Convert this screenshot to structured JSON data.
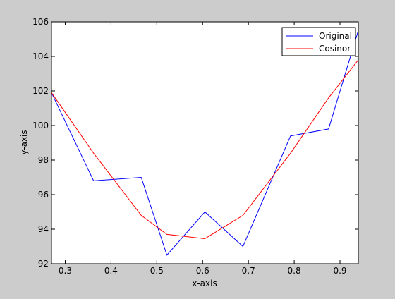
{
  "chart_data": {
    "type": "line",
    "title": "",
    "xlabel": "x-axis",
    "ylabel": "y-axis",
    "xlim": [
      0.27,
      0.94
    ],
    "ylim": [
      92,
      106
    ],
    "xticks": [
      0.3,
      0.4,
      0.5,
      0.6,
      0.7,
      0.8,
      0.9
    ],
    "yticks": [
      92,
      94,
      96,
      98,
      100,
      102,
      104,
      106
    ],
    "xtick_labels": [
      "0.3",
      "0.4",
      "0.5",
      "0.6",
      "0.7",
      "0.8",
      "0.9"
    ],
    "ytick_labels": [
      "92",
      "94",
      "96",
      "98",
      "100",
      "102",
      "104",
      "106"
    ],
    "grid": false,
    "legend_position": "top-right",
    "series": [
      {
        "name": "Original",
        "color": "#0000ff",
        "x": [
          0.27,
          0.362,
          0.466,
          0.522,
          0.605,
          0.688,
          0.792,
          0.875,
          0.94
        ],
        "y": [
          101.9,
          96.8,
          97.0,
          92.5,
          95.0,
          93.0,
          99.4,
          99.8,
          105.5
        ]
      },
      {
        "name": "Cosinor",
        "color": "#ff0000",
        "x": [
          0.27,
          0.362,
          0.466,
          0.522,
          0.605,
          0.688,
          0.792,
          0.875,
          0.94
        ],
        "y": [
          101.9,
          98.4,
          94.8,
          93.7,
          93.45,
          94.8,
          98.4,
          101.6,
          103.8
        ]
      }
    ]
  }
}
